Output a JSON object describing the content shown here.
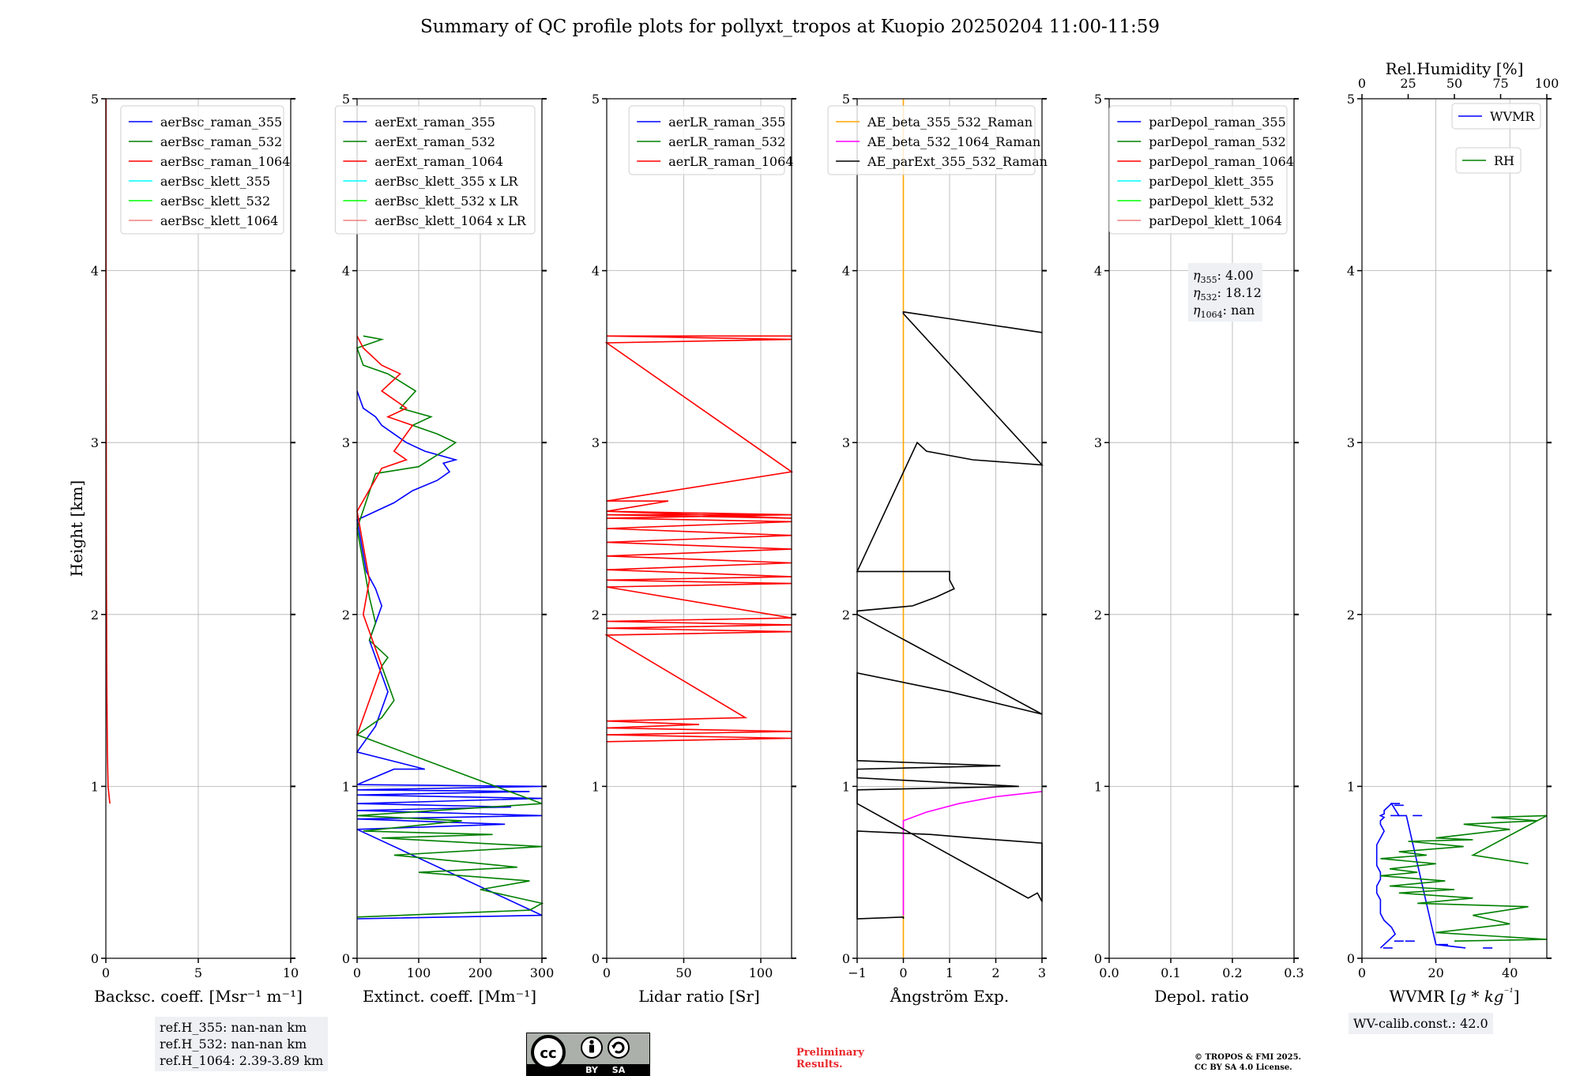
{
  "title": "Summary of QC profile plots for pollyxt_tropos at Kuopio 20250204 11:00-11:59",
  "ylabel": "Height [km]",
  "ref_box": [
    "ref.H_355: nan-nan km",
    "ref.H_532: nan-nan km",
    "ref.H_1064: 2.39-3.89 km"
  ],
  "wv_box": "WV-calib.const.: 42.0",
  "preliminary": [
    "Preliminary",
    "Results."
  ],
  "copyright": [
    "© TROPOS & FMI 2025.",
    "CC BY SA 4.0 License."
  ],
  "cc_badge": {
    "by": "BY",
    "sa": "SA"
  },
  "colors": {
    "blue": "#0000ff",
    "green": "#008000",
    "red": "#ff0000",
    "cyan": "#00ffff",
    "lime": "#00ff00",
    "pink": "#f08080",
    "orange": "#ffa500",
    "magenta": "#ff00ff",
    "black": "#000000"
  },
  "chart_data": [
    {
      "type": "line",
      "xlabel": "Backsc. coeff. [Msr⁻¹ m⁻¹]",
      "xlim": [
        0,
        10
      ],
      "ylim": [
        0,
        5
      ],
      "xticks": [
        0,
        5,
        10
      ],
      "yticks": [
        0,
        1,
        2,
        3,
        4,
        5
      ],
      "grid": true,
      "legend": "top-right",
      "series": [
        {
          "name": "aerBsc_raman_355",
          "color": "blue",
          "x": [],
          "y": []
        },
        {
          "name": "aerBsc_raman_532",
          "color": "green",
          "x": [],
          "y": []
        },
        {
          "name": "aerBsc_raman_1064",
          "color": "red",
          "x": [
            0.22,
            0.12,
            0.08,
            0.05,
            0.03,
            0.02,
            0.01,
            0.01
          ],
          "y": [
            0.9,
            1.0,
            1.2,
            1.6,
            2.2,
            3.0,
            4.0,
            5.0
          ]
        },
        {
          "name": "aerBsc_klett_355",
          "color": "cyan",
          "x": [],
          "y": []
        },
        {
          "name": "aerBsc_klett_532",
          "color": "lime",
          "x": [],
          "y": []
        },
        {
          "name": "aerBsc_klett_1064",
          "color": "pink",
          "x": [],
          "y": []
        }
      ]
    },
    {
      "type": "line",
      "xlabel": "Extinct. coeff. [Mm⁻¹]",
      "xlim": [
        0,
        300
      ],
      "ylim": [
        0,
        5
      ],
      "xticks": [
        0,
        100,
        200,
        300
      ],
      "yticks": [
        0,
        1,
        2,
        3,
        4,
        5
      ],
      "grid": true,
      "legend": "top-right",
      "series": [
        {
          "name": "aerExt_raman_355",
          "color": "blue",
          "x": [
            0,
            300,
            0,
            240,
            0,
            300,
            0,
            250,
            0,
            300,
            0,
            280,
            0,
            300,
            0,
            60,
            110,
            0,
            30,
            40,
            50,
            40,
            30,
            20,
            30,
            40,
            30,
            15,
            10,
            5,
            0,
            60,
            90,
            130,
            150,
            140,
            160,
            110,
            80,
            60,
            40,
            30,
            10,
            0
          ],
          "y": [
            0.23,
            0.25,
            0.75,
            0.78,
            0.81,
            0.83,
            0.86,
            0.88,
            0.9,
            0.93,
            0.95,
            0.97,
            0.98,
            1.0,
            1.01,
            1.1,
            1.1,
            1.2,
            1.35,
            1.45,
            1.55,
            1.65,
            1.75,
            1.85,
            1.95,
            2.05,
            2.15,
            2.25,
            2.35,
            2.45,
            2.55,
            2.65,
            2.72,
            2.78,
            2.83,
            2.88,
            2.9,
            2.95,
            3.0,
            3.05,
            3.1,
            3.15,
            3.2,
            3.3
          ]
        },
        {
          "name": "aerExt_raman_532",
          "color": "green",
          "x": [
            0,
            280,
            300,
            200,
            280,
            100,
            260,
            60,
            300,
            40,
            220,
            10,
            170,
            0,
            300,
            0,
            40,
            60,
            50,
            40,
            50,
            20,
            30,
            20,
            10,
            0,
            30,
            100,
            140,
            160,
            130,
            90,
            120,
            70,
            95,
            50,
            10,
            0,
            40,
            10
          ],
          "y": [
            0.24,
            0.28,
            0.32,
            0.4,
            0.45,
            0.5,
            0.53,
            0.6,
            0.65,
            0.7,
            0.72,
            0.74,
            0.8,
            0.83,
            0.9,
            1.3,
            1.4,
            1.5,
            1.6,
            1.7,
            1.75,
            1.85,
            1.95,
            2.1,
            2.3,
            2.5,
            2.82,
            2.86,
            2.95,
            3.0,
            3.05,
            3.1,
            3.15,
            3.2,
            3.3,
            3.4,
            3.45,
            3.55,
            3.6,
            3.62
          ]
        },
        {
          "name": "aerExt_raman_1064",
          "color": "red",
          "x": [
            0,
            10,
            20,
            30,
            40,
            30,
            20,
            10,
            20,
            10,
            0,
            40,
            80,
            60,
            70,
            90,
            50,
            80,
            60,
            40,
            70,
            40,
            10,
            0
          ],
          "y": [
            1.3,
            1.4,
            1.5,
            1.6,
            1.7,
            1.8,
            1.9,
            2.0,
            2.2,
            2.4,
            2.6,
            2.85,
            2.9,
            2.95,
            3.0,
            3.1,
            3.15,
            3.2,
            3.25,
            3.3,
            3.4,
            3.45,
            3.55,
            3.62
          ]
        },
        {
          "name": "aerBsc_klett_355 x LR",
          "color": "cyan",
          "x": [],
          "y": []
        },
        {
          "name": "aerBsc_klett_532 x LR",
          "color": "lime",
          "x": [],
          "y": []
        },
        {
          "name": "aerBsc_klett_1064 x LR",
          "color": "pink",
          "x": [],
          "y": []
        }
      ]
    },
    {
      "type": "line",
      "xlabel": "Lidar ratio [Sr]",
      "xlim": [
        0,
        120
      ],
      "ylim": [
        0,
        5
      ],
      "xticks": [
        0,
        50,
        100
      ],
      "yticks": [
        0,
        1,
        2,
        3,
        4,
        5
      ],
      "grid": true,
      "legend": "top-right",
      "series": [
        {
          "name": "aerLR_raman_355",
          "color": "blue",
          "x": [],
          "y": []
        },
        {
          "name": "aerLR_raman_532",
          "color": "green",
          "x": [],
          "y": []
        },
        {
          "name": "aerLR_raman_1064",
          "color": "red",
          "x": [
            0,
            120,
            0,
            120,
            0,
            60,
            0,
            90,
            0,
            120,
            0,
            120,
            0,
            120,
            0,
            120,
            0,
            120,
            0,
            120,
            0,
            120,
            0,
            120,
            0,
            120,
            0,
            120,
            0,
            120,
            0,
            120,
            0,
            120,
            0,
            120,
            0,
            40,
            0,
            120,
            0,
            120,
            0,
            120
          ],
          "y": [
            1.26,
            1.28,
            1.3,
            1.32,
            1.34,
            1.36,
            1.38,
            1.4,
            1.88,
            1.9,
            1.92,
            1.94,
            1.96,
            1.98,
            2.16,
            2.18,
            2.2,
            2.22,
            2.26,
            2.3,
            2.34,
            2.38,
            2.42,
            2.46,
            2.5,
            2.54,
            2.56,
            2.58,
            2.6,
            2.56,
            2.58,
            2.56,
            2.58,
            2.58,
            2.6,
            2.58,
            2.6,
            2.66,
            2.66,
            2.83,
            3.58,
            3.6,
            3.62,
            3.62
          ]
        }
      ]
    },
    {
      "type": "line",
      "xlabel": "Ångström Exp.",
      "xlim": [
        -1,
        3
      ],
      "ylim": [
        0,
        5
      ],
      "xticks": [
        -1,
        0,
        1,
        2,
        3
      ],
      "yticks": [
        0,
        1,
        2,
        3,
        4,
        5
      ],
      "grid": true,
      "legend": "top-right",
      "series": [
        {
          "name": "AE_beta_355_532_Raman",
          "color": "orange",
          "x": [
            0,
            0
          ],
          "y": [
            0,
            5
          ]
        },
        {
          "name": "AE_beta_532_1064_Raman",
          "color": "magenta",
          "x": [
            0,
            0,
            0.5,
            1.2,
            2.0,
            3.0
          ],
          "y": [
            0.25,
            0.8,
            0.85,
            0.9,
            0.94,
            0.97
          ]
        },
        {
          "name": "AE_parExt_355_532_Raman",
          "color": "black",
          "x": [
            0,
            0,
            -1,
            -1,
            0.6,
            1.5,
            3.0,
            3.0,
            2.9,
            2.7,
            -1,
            -1,
            2.5,
            -1,
            -1,
            2.1,
            -1,
            -1,
            1.0,
            3.0,
            -1,
            -1,
            0.2,
            0.7,
            1.1,
            1.0,
            1.0,
            -1,
            0.3,
            0.5,
            1.5,
            3.0,
            0,
            0,
            1.0,
            3.0
          ],
          "y": [
            0.23,
            0.24,
            0.23,
            0.74,
            0.72,
            0.7,
            0.67,
            0.33,
            0.38,
            0.35,
            0.9,
            0.98,
            1.0,
            1.05,
            1.1,
            1.12,
            1.15,
            1.66,
            1.55,
            1.42,
            2.0,
            2.02,
            2.05,
            2.1,
            2.15,
            2.2,
            2.25,
            2.25,
            3.0,
            2.95,
            2.9,
            2.87,
            3.75,
            3.76,
            3.72,
            3.64
          ]
        }
      ]
    },
    {
      "type": "line",
      "xlabel": "Depol. ratio",
      "xlim": [
        0.0,
        0.3
      ],
      "ylim": [
        0,
        5
      ],
      "xticks": [
        0.0,
        0.1,
        0.2,
        0.3
      ],
      "xtick_labels": [
        "0.0",
        "0.1",
        "0.2",
        "0.3"
      ],
      "yticks": [
        0,
        1,
        2,
        3,
        4,
        5
      ],
      "grid": true,
      "legend": "top-right",
      "annotation": {
        "eta355": "4.00",
        "eta532": "18.12",
        "eta1064": "nan"
      },
      "series": [
        {
          "name": "parDepol_raman_355",
          "color": "blue",
          "x": [],
          "y": []
        },
        {
          "name": "parDepol_raman_532",
          "color": "green",
          "x": [],
          "y": []
        },
        {
          "name": "parDepol_raman_1064",
          "color": "red",
          "x": [],
          "y": []
        },
        {
          "name": "parDepol_klett_355",
          "color": "cyan",
          "x": [],
          "y": []
        },
        {
          "name": "parDepol_klett_532",
          "color": "lime",
          "x": [],
          "y": []
        },
        {
          "name": "parDepol_klett_1064",
          "color": "pink",
          "x": [],
          "y": []
        }
      ]
    },
    {
      "type": "line",
      "xlabel": "WVMR [g*kg⁻¹]",
      "xlabel_parts": [
        "WVMR [",
        "g * kg",
        "⁻¹",
        "]"
      ],
      "x2label": "Rel.Humidity [%]",
      "xlim": [
        0,
        50
      ],
      "x2lim": [
        0,
        100
      ],
      "ylim": [
        0,
        5
      ],
      "xticks": [
        0,
        20,
        40
      ],
      "x2ticks": [
        0,
        25,
        50,
        75,
        100
      ],
      "yticks": [
        0,
        1,
        2,
        3,
        4,
        5
      ],
      "grid": true,
      "series": [
        {
          "name": "WVMR",
          "color": "blue",
          "axis": "x",
          "x": [
            5,
            7,
            9,
            8,
            6,
            5,
            5,
            5,
            4,
            4,
            5,
            5,
            4,
            4,
            4,
            4,
            5,
            6,
            5,
            5,
            6,
            5,
            6,
            6,
            7,
            8,
            10,
            12,
            20,
            28
          ],
          "y": [
            0.06,
            0.1,
            0.14,
            0.18,
            0.22,
            0.26,
            0.3,
            0.34,
            0.38,
            0.42,
            0.46,
            0.5,
            0.54,
            0.58,
            0.62,
            0.66,
            0.7,
            0.74,
            0.78,
            0.8,
            0.82,
            0.83,
            0.84,
            0.86,
            0.88,
            0.9,
            0.83,
            0.83,
            0.08,
            0.06
          ],
          "points": [
            [
              7,
              0.06
            ],
            [
              10,
              0.1
            ],
            [
              13,
              0.1
            ],
            [
              22,
              0.08
            ],
            [
              34,
              0.06
            ],
            [
              15,
              0.83
            ],
            [
              9,
              0.83
            ],
            [
              9,
              0.9
            ],
            [
              10,
              0.89
            ]
          ]
        },
        {
          "name": "RH",
          "color": "green",
          "axis": "x2",
          "x": [
            50,
            100,
            40,
            80,
            60,
            90,
            30,
            60,
            20,
            50,
            15,
            45,
            10,
            30,
            15,
            40,
            10,
            35,
            20,
            55,
            25,
            60,
            40,
            80,
            55,
            95,
            70,
            100,
            60,
            90
          ],
          "y": [
            0.1,
            0.11,
            0.15,
            0.2,
            0.25,
            0.3,
            0.32,
            0.35,
            0.38,
            0.4,
            0.42,
            0.45,
            0.48,
            0.5,
            0.52,
            0.55,
            0.58,
            0.6,
            0.62,
            0.65,
            0.68,
            0.69,
            0.7,
            0.75,
            0.78,
            0.8,
            0.82,
            0.83,
            0.6,
            0.55
          ]
        }
      ]
    }
  ]
}
